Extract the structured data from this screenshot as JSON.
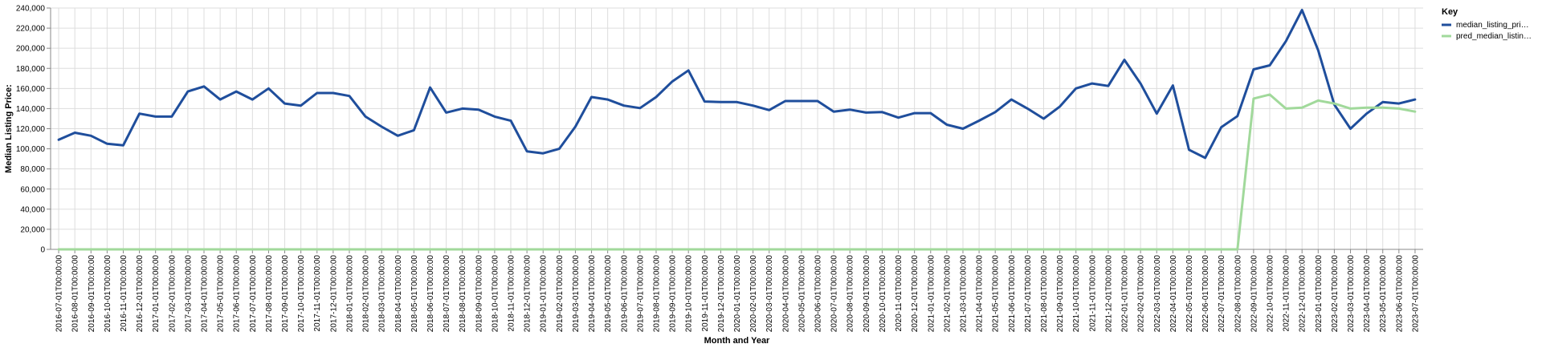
{
  "chart_data": {
    "type": "line",
    "title": "",
    "xlabel": "Month and Year",
    "ylabel": "Median Listing Price:",
    "ylim": [
      0,
      240000
    ],
    "yticks": [
      "0",
      "20,000",
      "40,000",
      "60,000",
      "80,000",
      "100,000",
      "120,000",
      "140,000",
      "160,000",
      "180,000",
      "200,000",
      "220,000",
      "240,000"
    ],
    "legend": {
      "title": "Key",
      "placement": "top-right"
    },
    "grid": true,
    "categories": [
      "2016-07-01T00:00:00",
      "2016-08-01T00:00:00",
      "2016-09-01T00:00:00",
      "2016-10-01T00:00:00",
      "2016-11-01T00:00:00",
      "2016-12-01T00:00:00",
      "2017-01-01T00:00:00",
      "2017-02-01T00:00:00",
      "2017-03-01T00:00:00",
      "2017-04-01T00:00:00",
      "2017-05-01T00:00:00",
      "2017-06-01T00:00:00",
      "2017-07-01T00:00:00",
      "2017-08-01T00:00:00",
      "2017-09-01T00:00:00",
      "2017-10-01T00:00:00",
      "2017-11-01T00:00:00",
      "2017-12-01T00:00:00",
      "2018-01-01T00:00:00",
      "2018-02-01T00:00:00",
      "2018-03-01T00:00:00",
      "2018-04-01T00:00:00",
      "2018-05-01T00:00:00",
      "2018-06-01T00:00:00",
      "2018-07-01T00:00:00",
      "2018-08-01T00:00:00",
      "2018-09-01T00:00:00",
      "2018-10-01T00:00:00",
      "2018-11-01T00:00:00",
      "2018-12-01T00:00:00",
      "2019-01-01T00:00:00",
      "2019-02-01T00:00:00",
      "2019-03-01T00:00:00",
      "2019-04-01T00:00:00",
      "2019-05-01T00:00:00",
      "2019-06-01T00:00:00",
      "2019-07-01T00:00:00",
      "2019-08-01T00:00:00",
      "2019-09-01T00:00:00",
      "2019-10-01T00:00:00",
      "2019-11-01T00:00:00",
      "2019-12-01T00:00:00",
      "2020-01-01T00:00:00",
      "2020-02-01T00:00:00",
      "2020-03-01T00:00:00",
      "2020-04-01T00:00:00",
      "2020-05-01T00:00:00",
      "2020-06-01T00:00:00",
      "2020-07-01T00:00:00",
      "2020-08-01T00:00:00",
      "2020-09-01T00:00:00",
      "2020-10-01T00:00:00",
      "2020-11-01T00:00:00",
      "2020-12-01T00:00:00",
      "2021-01-01T00:00:00",
      "2021-02-01T00:00:00",
      "2021-03-01T00:00:00",
      "2021-04-01T00:00:00",
      "2021-05-01T00:00:00",
      "2021-06-01T00:00:00",
      "2021-07-01T00:00:00",
      "2021-08-01T00:00:00",
      "2021-09-01T00:00:00",
      "2021-10-01T00:00:00",
      "2021-11-01T00:00:00",
      "2021-12-01T00:00:00",
      "2022-01-01T00:00:00",
      "2022-02-01T00:00:00",
      "2022-03-01T00:00:00",
      "2022-04-01T00:00:00",
      "2022-05-01T00:00:00",
      "2022-06-01T00:00:00",
      "2022-07-01T00:00:00",
      "2022-08-01T00:00:00",
      "2022-09-01T00:00:00",
      "2022-10-01T00:00:00",
      "2022-11-01T00:00:00",
      "2022-12-01T00:00:00",
      "2023-01-01T00:00:00",
      "2023-02-01T00:00:00",
      "2023-03-01T00:00:00",
      "2023-04-01T00:00:00",
      "2023-05-01T00:00:00",
      "2023-06-01T00:00:00",
      "2023-07-01T00:00:00"
    ],
    "series": [
      {
        "name": "median_listing_pri…",
        "color": "#1f4e9c",
        "values": [
          109000,
          116000,
          113000,
          105000,
          103500,
          135000,
          132000,
          132000,
          157000,
          162000,
          149000,
          157000,
          149000,
          160000,
          145000,
          143000,
          155500,
          155500,
          152500,
          132000,
          122000,
          113000,
          118500,
          161000,
          136000,
          140000,
          139000,
          132000,
          128000,
          97500,
          95500,
          100000,
          122000,
          151500,
          149000,
          143000,
          140500,
          151500,
          167000,
          178000,
          147000,
          146500,
          146500,
          143000,
          138500,
          147500,
          147500,
          147500,
          137000,
          139000,
          136000,
          136500,
          131000,
          135500,
          135500,
          124000,
          120000,
          128000,
          136500,
          149000,
          140000,
          130000,
          142000,
          160000,
          165000,
          162500,
          188500,
          165000,
          135000,
          163000,
          99000,
          91000,
          121500,
          132500,
          179000,
          183000,
          207000,
          238000,
          198000,
          144000,
          120000,
          135000,
          146500,
          145000,
          149000
        ]
      },
      {
        "name": "pred_median_listin…",
        "color": "#a1d99b",
        "values": [
          0,
          0,
          0,
          0,
          0,
          0,
          0,
          0,
          0,
          0,
          0,
          0,
          0,
          0,
          0,
          0,
          0,
          0,
          0,
          0,
          0,
          0,
          0,
          0,
          0,
          0,
          0,
          0,
          0,
          0,
          0,
          0,
          0,
          0,
          0,
          0,
          0,
          0,
          0,
          0,
          0,
          0,
          0,
          0,
          0,
          0,
          0,
          0,
          0,
          0,
          0,
          0,
          0,
          0,
          0,
          0,
          0,
          0,
          0,
          0,
          0,
          0,
          0,
          0,
          0,
          0,
          0,
          0,
          0,
          0,
          0,
          0,
          0,
          0,
          150000,
          154000,
          140000,
          141000,
          148000,
          145000,
          140000,
          141000,
          141000,
          140000,
          137000
        ]
      }
    ]
  }
}
